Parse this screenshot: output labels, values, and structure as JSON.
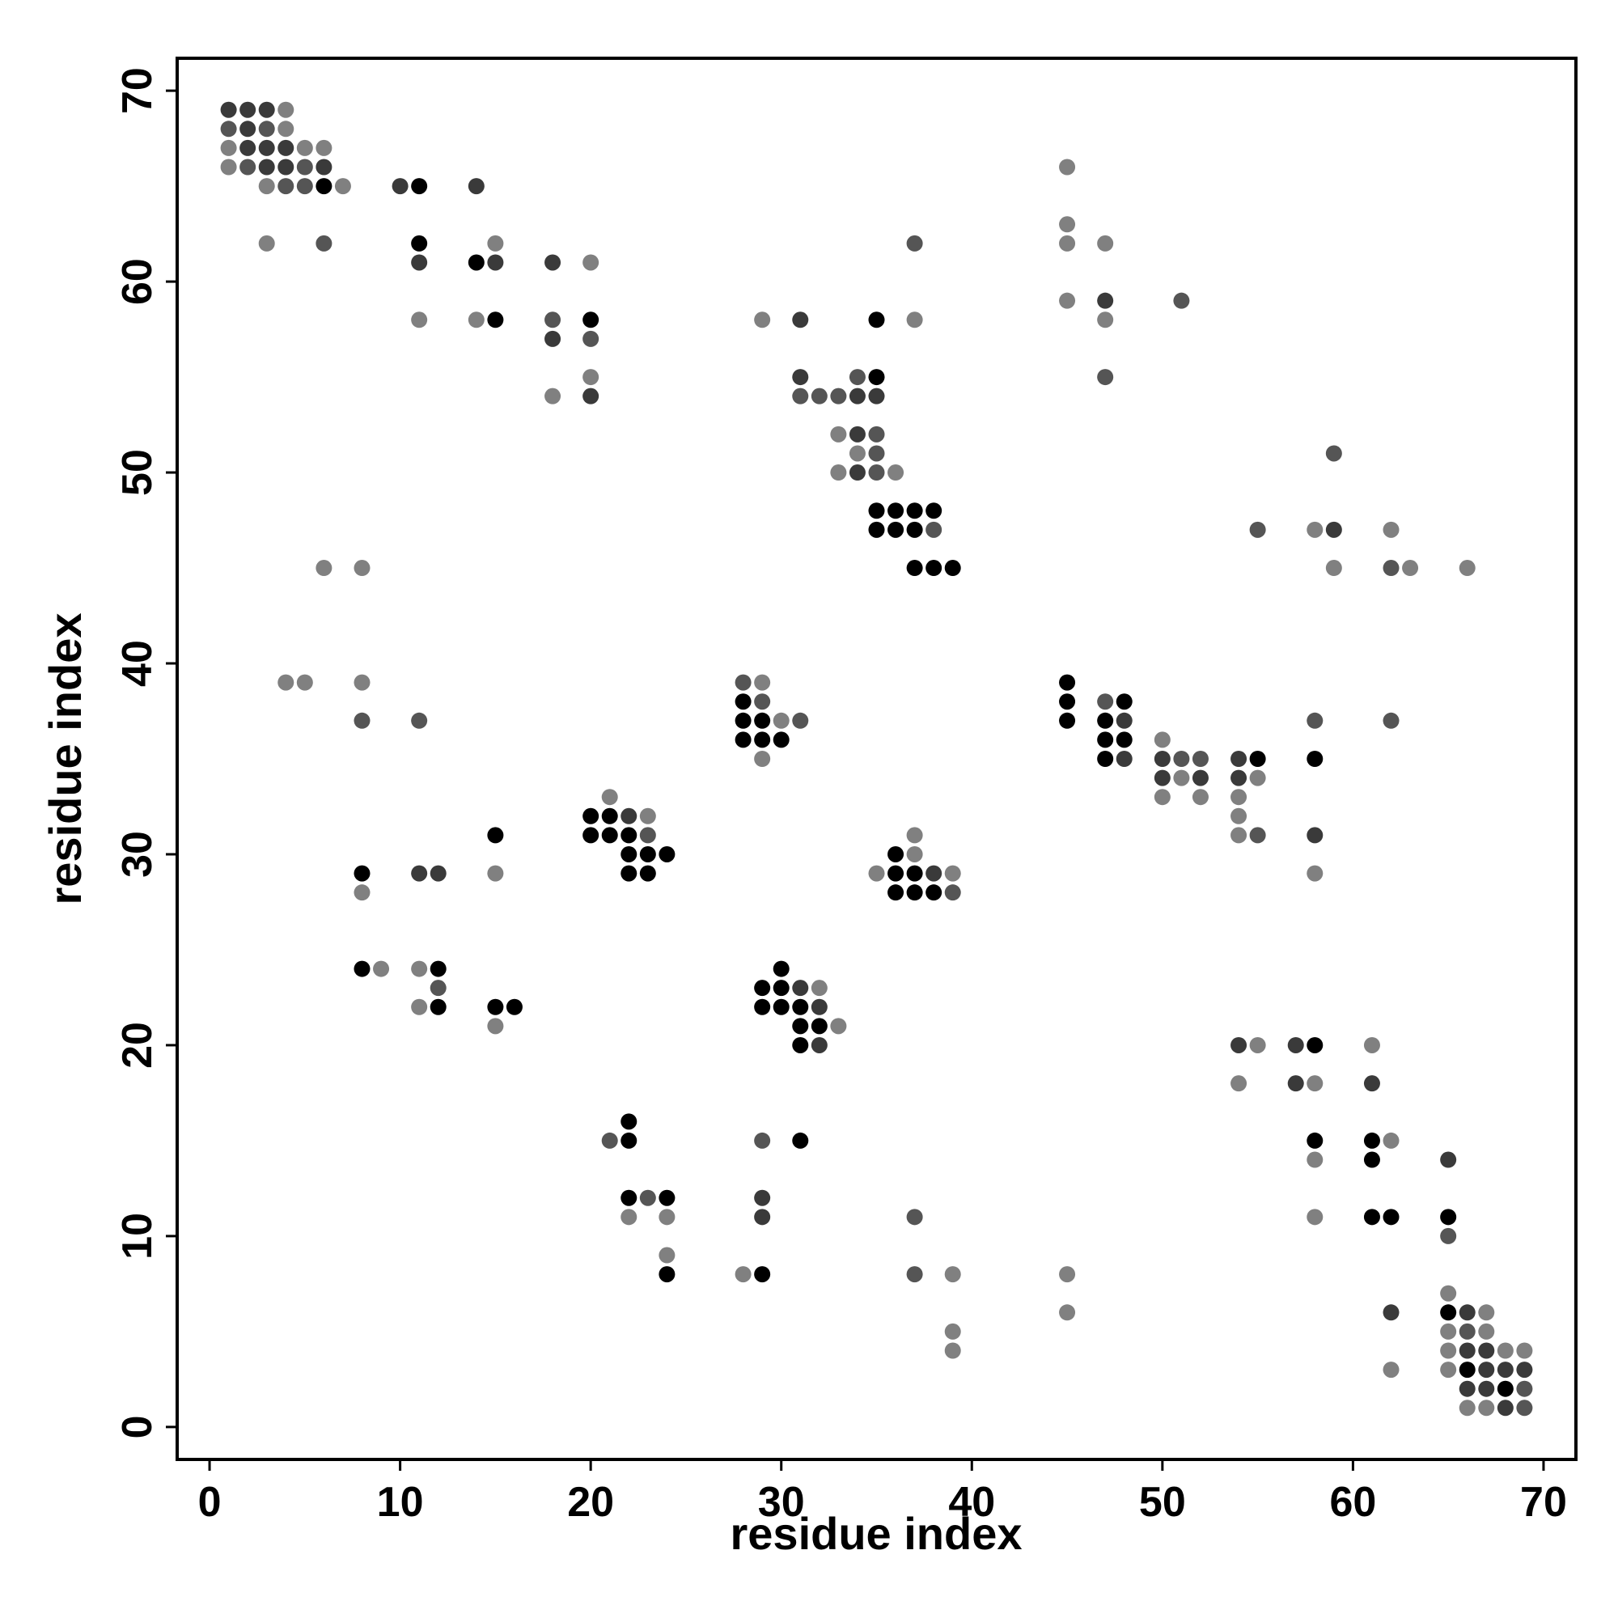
{
  "chart_data": {
    "type": "scatter",
    "xlabel": "residue index",
    "ylabel": "residue index",
    "xlim": [
      -1.7,
      71.7
    ],
    "ylim": [
      -1.7,
      71.7
    ],
    "xticks": [
      0,
      10,
      20,
      30,
      40,
      50,
      60,
      70
    ],
    "yticks": [
      0,
      10,
      20,
      30,
      40,
      50,
      60,
      70
    ],
    "series": [
      {
        "color": "#000000",
        "x": [
          6,
          11,
          11,
          14,
          15,
          20,
          35,
          35,
          35,
          36,
          37,
          38,
          35,
          36,
          37,
          37,
          38,
          39,
          45,
          28,
          45,
          48,
          28,
          29,
          45,
          47,
          28,
          29,
          30,
          47,
          48,
          47,
          55,
          58,
          20,
          21,
          15,
          20,
          21,
          22,
          22,
          23,
          24,
          36,
          8,
          22,
          23,
          36,
          37,
          36,
          37,
          38,
          8,
          12,
          30,
          29,
          30,
          12,
          15,
          16,
          29,
          30,
          31,
          31,
          32,
          31,
          58,
          22,
          22,
          31,
          58,
          61,
          61,
          22,
          24,
          61,
          62,
          65,
          24,
          29,
          65,
          66,
          68
        ],
        "values": [
          65,
          65,
          62,
          61,
          58,
          58,
          58,
          55,
          48,
          48,
          48,
          48,
          47,
          47,
          47,
          45,
          45,
          45,
          39,
          38,
          38,
          38,
          37,
          37,
          37,
          37,
          36,
          36,
          36,
          36,
          36,
          35,
          35,
          35,
          32,
          32,
          31,
          31,
          31,
          31,
          30,
          30,
          30,
          30,
          29,
          29,
          29,
          29,
          29,
          28,
          28,
          28,
          24,
          24,
          24,
          23,
          23,
          22,
          22,
          22,
          22,
          22,
          22,
          21,
          21,
          20,
          20,
          16,
          15,
          15,
          15,
          15,
          14,
          12,
          12,
          11,
          11,
          11,
          8,
          8,
          6,
          3,
          2
        ]
      },
      {
        "color": "#3a3a3a",
        "x": [
          1,
          2,
          3,
          2,
          2,
          3,
          4,
          3,
          4,
          6,
          10,
          14,
          11,
          15,
          18,
          47,
          31,
          18,
          31,
          20,
          34,
          35,
          34,
          34,
          59,
          48,
          48,
          50,
          54,
          50,
          52,
          54,
          22,
          58,
          11,
          12,
          38,
          31,
          32,
          32,
          54,
          57,
          57,
          61,
          65,
          29,
          29,
          62,
          66,
          66,
          67,
          67,
          68,
          69,
          66,
          67,
          68
        ],
        "values": [
          69,
          69,
          69,
          68,
          67,
          67,
          67,
          66,
          66,
          66,
          65,
          65,
          61,
          61,
          61,
          59,
          58,
          57,
          55,
          54,
          54,
          54,
          52,
          50,
          47,
          37,
          35,
          35,
          35,
          34,
          34,
          34,
          32,
          31,
          29,
          29,
          29,
          23,
          22,
          20,
          20,
          20,
          18,
          18,
          14,
          12,
          11,
          6,
          6,
          4,
          4,
          3,
          3,
          3,
          2,
          2,
          1
        ]
      },
      {
        "color": "#555555",
        "x": [
          1,
          3,
          2,
          5,
          4,
          5,
          6,
          37,
          51,
          18,
          20,
          34,
          47,
          31,
          32,
          33,
          35,
          35,
          59,
          35,
          38,
          55,
          62,
          28,
          29,
          47,
          8,
          11,
          31,
          58,
          62,
          51,
          52,
          23,
          55,
          39,
          12,
          21,
          29,
          23,
          37,
          65,
          37,
          66,
          69,
          69
        ],
        "values": [
          68,
          68,
          66,
          66,
          65,
          65,
          62,
          62,
          59,
          58,
          57,
          55,
          55,
          54,
          54,
          54,
          52,
          51,
          51,
          50,
          47,
          47,
          45,
          39,
          38,
          38,
          37,
          37,
          37,
          37,
          37,
          35,
          35,
          31,
          31,
          28,
          23,
          15,
          15,
          12,
          11,
          10,
          8,
          5,
          2,
          1
        ]
      },
      {
        "color": "#808080",
        "x": [
          4,
          4,
          1,
          5,
          6,
          1,
          45,
          3,
          7,
          45,
          3,
          15,
          45,
          47,
          20,
          45,
          11,
          14,
          29,
          37,
          47,
          20,
          18,
          33,
          34,
          33,
          36,
          58,
          62,
          6,
          8,
          59,
          63,
          66,
          4,
          5,
          8,
          29,
          30,
          50,
          29,
          51,
          55,
          21,
          50,
          52,
          54,
          23,
          54,
          37,
          54,
          37,
          15,
          35,
          39,
          58,
          8,
          9,
          11,
          32,
          11,
          15,
          33,
          55,
          61,
          54,
          58,
          62,
          58,
          22,
          24,
          58,
          24,
          28,
          39,
          45,
          65,
          45,
          67,
          39,
          65,
          67,
          39,
          65,
          68,
          69,
          62,
          65,
          66,
          67
        ],
        "values": [
          69,
          68,
          67,
          67,
          67,
          66,
          66,
          65,
          65,
          63,
          62,
          62,
          62,
          62,
          61,
          59,
          58,
          58,
          58,
          58,
          58,
          55,
          54,
          52,
          51,
          50,
          50,
          47,
          47,
          45,
          45,
          45,
          45,
          45,
          39,
          39,
          39,
          39,
          37,
          36,
          35,
          34,
          34,
          33,
          33,
          33,
          33,
          32,
          32,
          31,
          31,
          30,
          29,
          29,
          29,
          29,
          28,
          24,
          24,
          23,
          22,
          21,
          21,
          20,
          20,
          18,
          18,
          15,
          14,
          11,
          11,
          11,
          9,
          8,
          8,
          8,
          7,
          6,
          6,
          5,
          5,
          5,
          4,
          4,
          4,
          4,
          3,
          3,
          1,
          1
        ]
      }
    ]
  }
}
